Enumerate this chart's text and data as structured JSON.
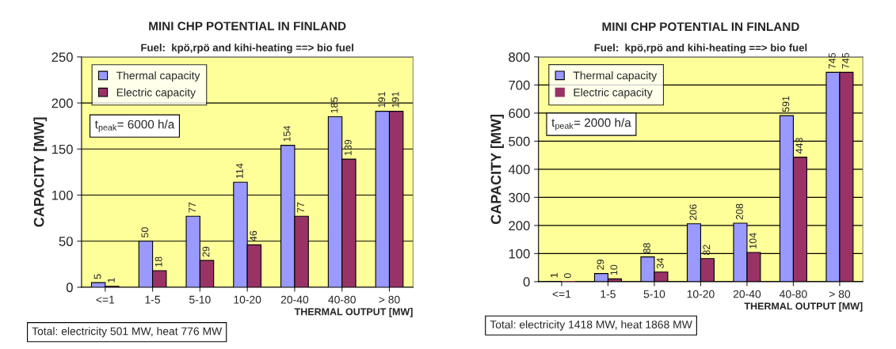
{
  "chart_data": [
    {
      "type": "bar",
      "title": "MINI CHP POTENTIAL IN FINLAND",
      "subtitle": "Fuel:  kpö,rpö and kihi-heating ==> bio fuel",
      "xlabel": "THERMAL OUTPUT [MW]",
      "ylabel": "CAPACITY [MW]",
      "categories": [
        "<=1",
        "1-5",
        "5-10",
        "10-20",
        "20-40",
        "40-80",
        "> 80"
      ],
      "series": [
        {
          "name": "Thermal capacity",
          "color": "#9999ff",
          "values": [
            5,
            50,
            77,
            114,
            154,
            185,
            191
          ]
        },
        {
          "name": "Electric capacity",
          "color": "#993366",
          "values": [
            1,
            18,
            29,
            46,
            77,
            139,
            191
          ]
        }
      ],
      "ylim": [
        0,
        250
      ],
      "yticks": [
        0,
        50,
        100,
        150,
        200,
        250
      ],
      "grid": "y",
      "legend": "top left",
      "data_labels": true,
      "annotations": [
        "t$_{peak}$= 6000 h/a",
        "Total: electricity 501 MW, heat 776 MW"
      ]
    },
    {
      "type": "bar",
      "title": "MINI CHP POTENTIAL IN FINLAND",
      "subtitle": "Fuel:  kpö,rpö and kihi-heating ==> bio fuel",
      "xlabel": "THERMAL OUTPUT [MW]",
      "ylabel": "CAPACITY [MW]",
      "categories": [
        "<=1",
        "1-5",
        "5-10",
        "10-20",
        "20-40",
        "40-80",
        "> 80"
      ],
      "series": [
        {
          "name": "Thermal capacity",
          "color": "#9999ff",
          "values": [
            1,
            29,
            88,
            206,
            208,
            591,
            745
          ]
        },
        {
          "name": "Electric capacity",
          "color": "#993366",
          "values": [
            0,
            10,
            34,
            82,
            104,
            443,
            745
          ]
        }
      ],
      "ylim": [
        0,
        800
      ],
      "yticks": [
        0,
        100,
        200,
        300,
        400,
        500,
        600,
        700,
        800
      ],
      "grid": "y",
      "legend": "top left",
      "data_labels": true,
      "annotations": [
        "t$_{peak}$= 2000 h/a",
        "Total: electricity 1418 MW, heat 1868 MW"
      ]
    }
  ]
}
